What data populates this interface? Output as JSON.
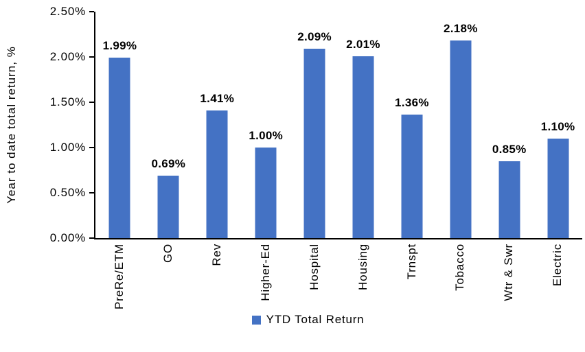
{
  "chart_data": {
    "type": "bar",
    "title": "",
    "xlabel": "",
    "ylabel": "Year to date total return, %",
    "categories": [
      "PreRe/ETM",
      "GO",
      "Rev",
      "Higher-Ed",
      "Hospital",
      "Housing",
      "Trnspt",
      "Tobacco",
      "Wtr & Swr",
      "Electric"
    ],
    "values": [
      1.99,
      0.69,
      1.41,
      1.0,
      2.09,
      2.01,
      1.36,
      2.18,
      0.85,
      1.1
    ],
    "data_labels": [
      "1.99%",
      "0.69%",
      "1.41%",
      "1.00%",
      "2.09%",
      "2.01%",
      "1.36%",
      "2.18%",
      "0.85%",
      "1.10%"
    ],
    "ylim": [
      0,
      2.5
    ],
    "y_ticks": [
      "0.00%",
      "0.50%",
      "1.00%",
      "1.50%",
      "2.00%",
      "2.50%"
    ],
    "grid": false,
    "bar_color": "#4472C4",
    "axis_color": "#000000",
    "text_color": "#000000",
    "background": "#FFFFFF",
    "legend": {
      "position": "bottom",
      "entries": [
        {
          "label": "YTD Total Return",
          "color": "#4472C4"
        }
      ]
    }
  }
}
